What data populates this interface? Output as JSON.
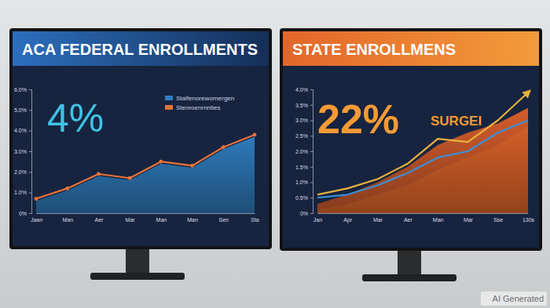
{
  "chart_data": [
    {
      "type": "line",
      "title": "ACA FEDERAL ENROLLMENTS",
      "annotations": [
        "4%"
      ],
      "categories": [
        "Jaan",
        "Man",
        "Aer",
        "Mar",
        "Man",
        "Man",
        "Sen",
        "Sta"
      ],
      "series": [
        {
          "name": "Stalfenorewornergen",
          "color": "#2f7fc1",
          "type": "area",
          "values": [
            0.6,
            1.1,
            1.8,
            1.6,
            2.4,
            2.2,
            3.1,
            3.7
          ]
        },
        {
          "name": "Stenroenrnnties",
          "color": "#e8733a",
          "type": "line",
          "marker": "circle",
          "values": [
            0.7,
            1.2,
            1.9,
            1.7,
            2.5,
            2.3,
            3.2,
            3.8
          ]
        }
      ],
      "ylim": [
        0,
        6
      ],
      "yticks": [
        {
          "value": 0,
          "label": "0%"
        },
        {
          "value": 1,
          "label": "1.0%"
        },
        {
          "value": 2,
          "label": "2.0%"
        },
        {
          "value": 3,
          "label": "3.0%"
        },
        {
          "value": 4,
          "label": "4.0%"
        },
        {
          "value": 5,
          "label": "5.0%"
        },
        {
          "value": 6,
          "label": "6.0%"
        }
      ],
      "legend": "top-right",
      "grid": false
    },
    {
      "type": "line",
      "title": "STATE ENROLLMENS",
      "annotations": [
        "22%",
        "SURGEI"
      ],
      "categories": [
        "Jan",
        "Apr",
        "Mar",
        "Aer",
        "Man",
        "Mar",
        "Sse",
        "130s"
      ],
      "series": [
        {
          "color": "#f2b233",
          "type": "area",
          "values": [
            0.1,
            0.3,
            0.6,
            0.9,
            1.4,
            1.8,
            2.2,
            2.8
          ]
        },
        {
          "color": "#e0602a",
          "type": "area",
          "values": [
            0.3,
            0.6,
            1.0,
            1.5,
            2.2,
            2.6,
            2.9,
            3.4
          ]
        },
        {
          "color": "#3a8fd8",
          "type": "line",
          "values": [
            0.5,
            0.6,
            0.9,
            1.3,
            1.8,
            2.0,
            2.6,
            3.0
          ]
        },
        {
          "color": "#e8b040",
          "type": "line",
          "marker": "arrow",
          "values": [
            0.6,
            0.8,
            1.1,
            1.6,
            2.4,
            2.3,
            3.0,
            3.9
          ]
        }
      ],
      "ylim": [
        0,
        4
      ],
      "yticks": [
        {
          "value": 0,
          "label": "0%"
        },
        {
          "value": 0.5,
          "label": "0.5%"
        },
        {
          "value": 1,
          "label": "1.0%"
        },
        {
          "value": 1.5,
          "label": "1.5%"
        },
        {
          "value": 2,
          "label": "2.0%"
        },
        {
          "value": 2.5,
          "label": "2.5%"
        },
        {
          "value": 3,
          "label": "3.0%"
        },
        {
          "value": 3.5,
          "label": "3.5%"
        },
        {
          "value": 4,
          "label": "4.0%"
        }
      ],
      "grid": false
    }
  ],
  "watermark": "AI Generated"
}
